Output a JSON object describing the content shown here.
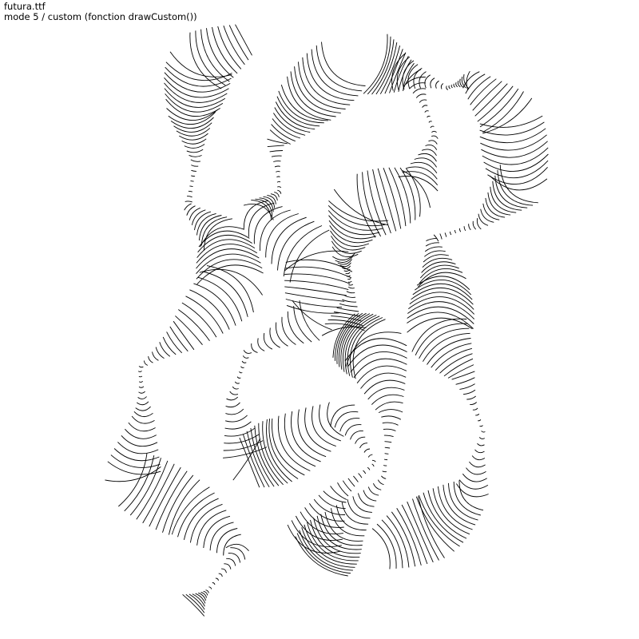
{
  "sketch": {
    "font_file": "futura.ttf",
    "mode_label": "mode 5 / custom (fonction drawCustom())"
  },
  "colors": {
    "background": "#ffffff",
    "stroke": "#000000",
    "text": "#000000"
  }
}
